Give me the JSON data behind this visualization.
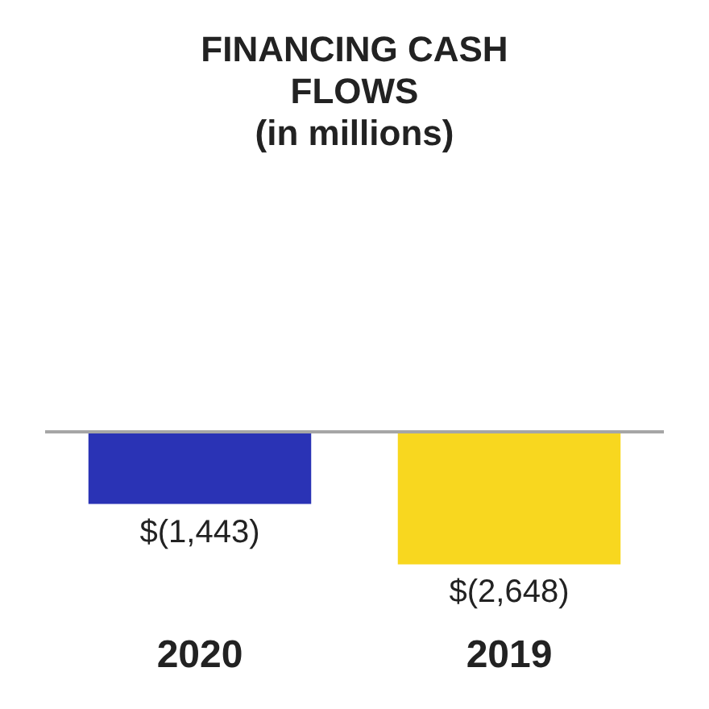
{
  "chart_data": {
    "type": "bar",
    "title": "FINANCING CASH FLOWS",
    "subtitle": "(in millions)",
    "categories": [
      "2020",
      "2019"
    ],
    "values": [
      -1443,
      -2648
    ],
    "colors": [
      "#2a33b5",
      "#f8d71f"
    ],
    "value_labels": [
      "$(1,443)",
      "$(2,648)"
    ],
    "legend": false,
    "grid": false
  }
}
